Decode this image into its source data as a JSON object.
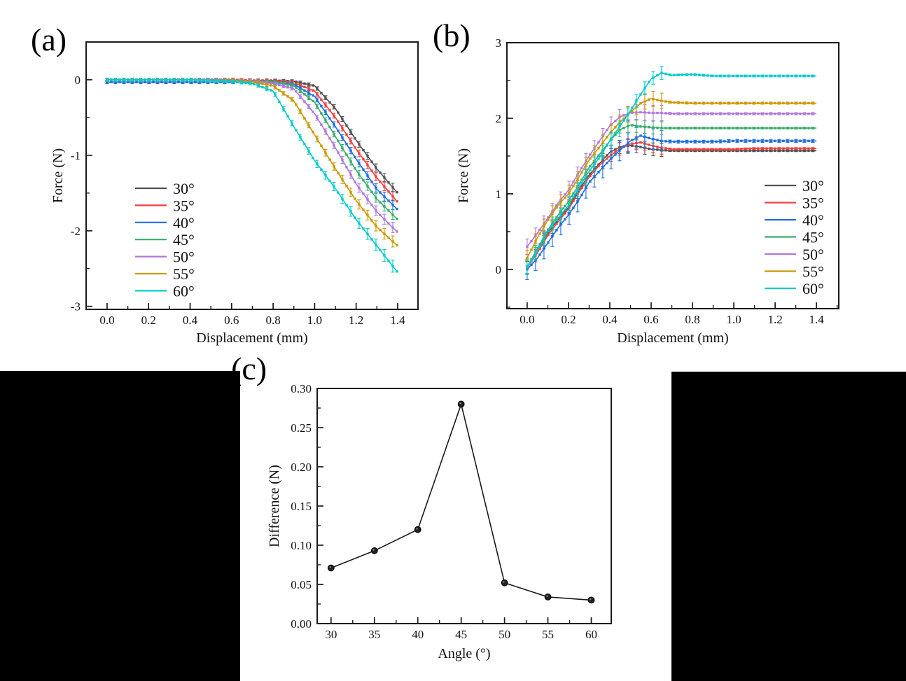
{
  "figure": {
    "panels": {
      "a": "(a)",
      "b": "(b)",
      "c": "(c)"
    },
    "ink_color": "#1a1a1a",
    "background": "#ffffff"
  },
  "chart_data": [
    {
      "id": "a",
      "type": "line",
      "title": "",
      "xlabel": "Displacement (mm)",
      "ylabel": "Force (N)",
      "xlim": [
        -0.101,
        1.498
      ],
      "ylim": [
        -3.04,
        0.5
      ],
      "xticks": {
        "values": [
          0,
          0.2,
          0.4,
          0.6,
          0.8,
          1.0,
          1.2,
          1.4
        ],
        "labels": [
          "0.0",
          "0.2",
          "0.4",
          "0.6",
          "0.8",
          "1.0",
          "1.2",
          "1.4"
        ]
      },
      "yticks": {
        "values": [
          0,
          -1,
          -2,
          -3
        ],
        "labels": [
          "0",
          "-1",
          "-2",
          "-3"
        ]
      },
      "xminor": 0.1,
      "yminor": 0.5,
      "grid": false,
      "legend_position": "middle-left",
      "marker": "square",
      "marker_px": 6,
      "error_model": {
        "mode": "value",
        "small": 0.02,
        "coef": 0.025,
        "max": 0.08
      },
      "x": [
        0,
        0.1,
        0.2,
        0.3,
        0.4,
        0.5,
        0.6,
        0.7,
        0.8,
        0.9,
        1.0,
        1.1,
        1.2,
        1.3,
        1.4
      ],
      "series": [
        {
          "name": "30°",
          "color": "#515151",
          "values": [
            0,
            0,
            0,
            0,
            0,
            0,
            0,
            -0.01,
            -0.01,
            -0.02,
            -0.08,
            -0.38,
            -0.8,
            -1.18,
            -1.5
          ]
        },
        {
          "name": "35°",
          "color": "#F14040",
          "values": [
            0,
            0,
            0,
            0,
            0,
            0,
            0,
            -0.01,
            -0.02,
            -0.04,
            -0.15,
            -0.5,
            -0.92,
            -1.3,
            -1.62
          ]
        },
        {
          "name": "40°",
          "color": "#1A6FDF",
          "values": [
            -0.03,
            -0.03,
            -0.03,
            -0.03,
            -0.03,
            -0.03,
            -0.03,
            -0.03,
            -0.04,
            -0.06,
            -0.22,
            -0.62,
            -1.05,
            -1.45,
            -1.72
          ]
        },
        {
          "name": "45°",
          "color": "#37AD6B",
          "values": [
            0,
            0,
            0,
            0,
            0,
            0,
            -0.01,
            -0.02,
            -0.03,
            -0.08,
            -0.3,
            -0.75,
            -1.2,
            -1.58,
            -1.85
          ]
        },
        {
          "name": "50°",
          "color": "#B177DE",
          "values": [
            0,
            0,
            0,
            0,
            0,
            0,
            -0.01,
            -0.02,
            -0.05,
            -0.12,
            -0.45,
            -0.9,
            -1.38,
            -1.75,
            -2.02
          ]
        },
        {
          "name": "55°",
          "color": "#CC9900",
          "values": [
            0,
            0,
            0,
            0,
            0,
            -0.01,
            -0.01,
            -0.03,
            -0.08,
            -0.28,
            -0.73,
            -1.18,
            -1.6,
            -1.95,
            -2.2
          ]
        },
        {
          "name": "60°",
          "color": "#00CBCC",
          "values": [
            0,
            0,
            0,
            0,
            0,
            -0.01,
            -0.02,
            -0.05,
            -0.15,
            -0.62,
            -1.07,
            -1.44,
            -1.85,
            -2.2,
            -2.55
          ]
        }
      ]
    },
    {
      "id": "b",
      "type": "line",
      "title": "",
      "xlabel": "Displacement (mm)",
      "ylabel": "Force (N)",
      "xlim": [
        -0.098,
        1.508
      ],
      "ylim": [
        -0.52,
        3
      ],
      "xticks": {
        "values": [
          0,
          0.2,
          0.4,
          0.6,
          0.8,
          1.0,
          1.2,
          1.4
        ],
        "labels": [
          "0.0",
          "0.2",
          "0.4",
          "0.6",
          "0.8",
          "1.0",
          "1.2",
          "1.4"
        ]
      },
      "yticks": {
        "values": [
          0,
          1,
          2,
          3
        ],
        "labels": [
          "0",
          "1",
          "2",
          "3"
        ]
      },
      "xminor": 0.1,
      "yminor": 0.5,
      "grid": false,
      "legend_position": "bottom-right",
      "marker": "square",
      "marker_px": 6,
      "error_model": {
        "mode": "x",
        "cut": 0.66,
        "rise": 0.085,
        "plateau": 0.012
      },
      "x": [
        0,
        0.05,
        0.1,
        0.15,
        0.2,
        0.25,
        0.3,
        0.35,
        0.4,
        0.45,
        0.5,
        0.55,
        0.6,
        0.65,
        0.7,
        0.8,
        0.9,
        1.0,
        1.1,
        1.2,
        1.3,
        1.4
      ],
      "series": [
        {
          "name": "30°",
          "color": "#515151",
          "values": [
            0.02,
            0.25,
            0.48,
            0.66,
            0.82,
            1.05,
            1.25,
            1.4,
            1.55,
            1.62,
            1.64,
            1.62,
            1.59,
            1.58,
            1.57,
            1.57,
            1.57,
            1.57,
            1.57,
            1.57,
            1.57,
            1.57
          ]
        },
        {
          "name": "35°",
          "color": "#F14040",
          "values": [
            0.03,
            0.22,
            0.45,
            0.63,
            0.8,
            1.02,
            1.22,
            1.38,
            1.5,
            1.6,
            1.66,
            1.68,
            1.64,
            1.61,
            1.59,
            1.59,
            1.59,
            1.59,
            1.6,
            1.6,
            1.6,
            1.6
          ]
        },
        {
          "name": "40°",
          "color": "#1A6FDF",
          "err_scale": 1.6,
          "values": [
            0.0,
            0.15,
            0.35,
            0.55,
            0.72,
            0.92,
            1.15,
            1.3,
            1.45,
            1.58,
            1.7,
            1.77,
            1.73,
            1.7,
            1.69,
            1.69,
            1.69,
            1.7,
            1.7,
            1.7,
            1.7,
            1.7
          ]
        },
        {
          "name": "45°",
          "color": "#37AD6B",
          "values": [
            0.03,
            0.28,
            0.52,
            0.72,
            0.9,
            1.12,
            1.35,
            1.52,
            1.7,
            1.85,
            1.91,
            1.89,
            1.88,
            1.87,
            1.87,
            1.87,
            1.87,
            1.87,
            1.87,
            1.87,
            1.87,
            1.87
          ]
        },
        {
          "name": "50°",
          "color": "#B177DE",
          "err_scale": 1.2,
          "values": [
            0.3,
            0.48,
            0.68,
            0.88,
            1.05,
            1.28,
            1.5,
            1.7,
            1.9,
            2.02,
            2.07,
            2.08,
            2.07,
            2.07,
            2.06,
            2.06,
            2.06,
            2.06,
            2.06,
            2.06,
            2.06,
            2.06
          ]
        },
        {
          "name": "55°",
          "color": "#CC9900",
          "err_scale": 1.2,
          "values": [
            0.15,
            0.42,
            0.65,
            0.85,
            1.0,
            1.22,
            1.45,
            1.62,
            1.8,
            1.95,
            2.08,
            2.2,
            2.26,
            2.23,
            2.21,
            2.2,
            2.2,
            2.2,
            2.2,
            2.2,
            2.2,
            2.2
          ]
        },
        {
          "name": "60°",
          "color": "#00CBCC",
          "values": [
            0.03,
            0.25,
            0.5,
            0.68,
            0.85,
            1.08,
            1.3,
            1.48,
            1.7,
            1.9,
            2.1,
            2.32,
            2.52,
            2.6,
            2.57,
            2.58,
            2.56,
            2.56,
            2.56,
            2.56,
            2.56,
            2.56
          ]
        }
      ]
    },
    {
      "id": "c",
      "type": "line",
      "title": "",
      "xlabel": "Angle (°)",
      "ylabel": "Difference (N)",
      "xlim": [
        28.4,
        62.3
      ],
      "ylim": [
        0,
        0.3
      ],
      "xticks": {
        "values": [
          30,
          35,
          40,
          45,
          50,
          55,
          60
        ],
        "labels": [
          "30",
          "35",
          "40",
          "45",
          "50",
          "55",
          "60"
        ]
      },
      "yticks": {
        "values": [
          0,
          0.05,
          0.1,
          0.15,
          0.2,
          0.25,
          0.3
        ],
        "labels": [
          "0.00",
          "0.05",
          "0.10",
          "0.15",
          "0.20",
          "0.25",
          "0.30"
        ]
      },
      "xminor": 2.5,
      "yminor": 0.025,
      "grid": false,
      "legend_position": "none",
      "marker": "circle",
      "x": [
        30,
        35,
        40,
        45,
        50,
        55,
        60
      ],
      "series": [
        {
          "name": "difference",
          "color": "#1a1a1a",
          "values": [
            0.071,
            0.093,
            0.12,
            0.28,
            0.052,
            0.034,
            0.03
          ]
        }
      ]
    }
  ]
}
